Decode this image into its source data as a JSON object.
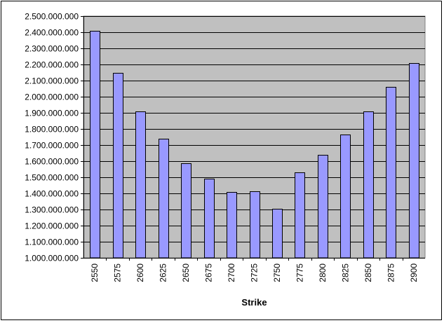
{
  "chart_data": {
    "type": "bar",
    "xlabel": "Strike",
    "ylabel": "",
    "title": "",
    "categories": [
      "2550",
      "2575",
      "2600",
      "2625",
      "2650",
      "2675",
      "2700",
      "2725",
      "2750",
      "2775",
      "2800",
      "2825",
      "2850",
      "2875",
      "2900"
    ],
    "values": [
      2410000000,
      2150000000,
      1910000000,
      1740000000,
      1585000000,
      1490000000,
      1410000000,
      1415000000,
      1305000000,
      1530000000,
      1640000000,
      1765000000,
      1910000000,
      2060000000,
      2210000000
    ],
    "ylim": [
      1000000000,
      2500000000
    ],
    "yticks": [
      1000000000,
      1100000000,
      1200000000,
      1300000000,
      1400000000,
      1500000000,
      1600000000,
      1700000000,
      1800000000,
      1900000000,
      2000000000,
      2100000000,
      2200000000,
      2300000000,
      2400000000,
      2500000000
    ],
    "ytick_labels": [
      "1.000.000.000",
      "1.100.000.000",
      "1.200.000.000",
      "1.300.000.000",
      "1.400.000.000",
      "1.500.000.000",
      "1.600.000.000",
      "1.700.000.000",
      "1.800.000.000",
      "1.900.000.000",
      "2.000.000.000",
      "2.100.000.000",
      "2.200.000.000",
      "2.300.000.000",
      "2.400.000.000",
      "2.500.000.000"
    ],
    "grid": true,
    "legend": "none",
    "colors": {
      "bar_fill": "#9999ff",
      "bar_stroke": "#000000",
      "plot_background": "#c0c0c0",
      "gridline": "#000000"
    }
  }
}
